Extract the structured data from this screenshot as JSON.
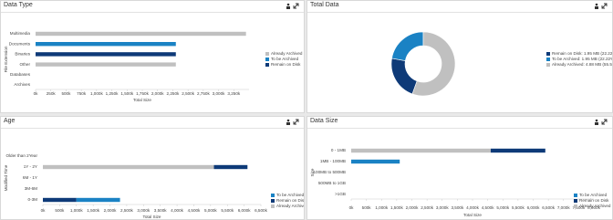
{
  "chart_data": [
    {
      "type": "hbar",
      "title": "Data Type",
      "xlabel": "Total Size",
      "ylabel": "File Extension",
      "categories": [
        "Multimedia",
        "Documents",
        "Binaries",
        "Other",
        "Databases",
        "Archives"
      ],
      "series": [
        {
          "name": "Already Archived",
          "color": "#c0c0c0",
          "values": [
            3450,
            0,
            0,
            2300,
            0,
            0
          ]
        },
        {
          "name": "To be Archived",
          "color": "#1a82c4",
          "values": [
            0,
            2300,
            0,
            0,
            0,
            0
          ]
        },
        {
          "name": "Remain on Disk",
          "color": "#0e3a78",
          "values": [
            0,
            0,
            2300,
            0,
            0,
            0
          ]
        }
      ],
      "xlim": [
        0,
        3500
      ],
      "xticks": [
        {
          "value": 0,
          "label": "0k"
        },
        {
          "value": 250,
          "label": "250k"
        },
        {
          "value": 500,
          "label": "500k"
        },
        {
          "value": 750,
          "label": "750k"
        },
        {
          "value": 1000,
          "label": "1,000k"
        },
        {
          "value": 1250,
          "label": "1,250k"
        },
        {
          "value": 1500,
          "label": "1,500k"
        },
        {
          "value": 1750,
          "label": "1,750k"
        },
        {
          "value": 2000,
          "label": "2,000k"
        },
        {
          "value": 2250,
          "label": "2,250k"
        },
        {
          "value": 2500,
          "label": "2,500k"
        },
        {
          "value": 2750,
          "label": "2,750k"
        },
        {
          "value": 3000,
          "label": "3,000k"
        },
        {
          "value": 3250,
          "label": "3,250k"
        }
      ],
      "legend": "right"
    },
    {
      "type": "pie",
      "title": "Total Data",
      "categories": [
        "Remain on Disk: 1.95 MB (22.22%)",
        "To be Archived: 1.95 MB (22.22%)",
        "Already Archived: 4.88 MB (55.56%)"
      ],
      "values": [
        22.22,
        22.22,
        55.56
      ],
      "colors": [
        "#0e3a78",
        "#1a82c4",
        "#c0c0c0"
      ],
      "legend": "right"
    },
    {
      "type": "hbar",
      "title": "Age",
      "xlabel": "Total Size",
      "ylabel": "Modified Time",
      "categories": [
        "Older than 2Year",
        "1Y - 2Y",
        "6M - 1Y",
        "3M-6M",
        "0-3M"
      ],
      "series": [
        {
          "name": "To be Archived",
          "color": "#1a82c4",
          "values": [
            0,
            0,
            0,
            0,
            1300
          ]
        },
        {
          "name": "Remain on Disk",
          "color": "#0e3a78",
          "values": [
            0,
            1000,
            0,
            0,
            1000
          ]
        },
        {
          "name": "Already Archived",
          "color": "#c0c0c0",
          "values": [
            0,
            5100,
            0,
            0,
            0
          ]
        }
      ],
      "xlim": [
        0,
        6500
      ],
      "xticks": [
        {
          "value": 0,
          "label": "0k"
        },
        {
          "value": 500,
          "label": "500k"
        },
        {
          "value": 1000,
          "label": "1,000k"
        },
        {
          "value": 1500,
          "label": "1,500k"
        },
        {
          "value": 2000,
          "label": "2,000k"
        },
        {
          "value": 2500,
          "label": "2,500k"
        },
        {
          "value": 3000,
          "label": "3,000k"
        },
        {
          "value": 3500,
          "label": "3,500k"
        },
        {
          "value": 4000,
          "label": "4,000k"
        },
        {
          "value": 4500,
          "label": "4,500k"
        },
        {
          "value": 5000,
          "label": "5,000k"
        },
        {
          "value": 5500,
          "label": "5,500k"
        },
        {
          "value": 6000,
          "label": "6,000k"
        },
        {
          "value": 6500,
          "label": "6,500k"
        }
      ],
      "legend": "right"
    },
    {
      "type": "hbar",
      "title": "Data Size",
      "xlabel": "Total Size",
      "ylabel": "Size",
      "categories": [
        "0 - 1MB",
        "1MB - 100MB",
        "100MB to 500MB",
        "500MB to 1GB",
        ">1GB"
      ],
      "series": [
        {
          "name": "To be Archived",
          "color": "#1a82c4",
          "values": [
            0,
            1600,
            0,
            0,
            0
          ]
        },
        {
          "name": "Remain on Disk",
          "color": "#0e3a78",
          "values": [
            1800,
            0,
            0,
            0,
            0
          ]
        },
        {
          "name": "Already Archived",
          "color": "#c0c0c0",
          "values": [
            4600,
            0,
            0,
            0,
            0
          ]
        }
      ],
      "xlim": [
        0,
        8000
      ],
      "xticks": [
        {
          "value": 0,
          "label": "0k"
        },
        {
          "value": 500,
          "label": "500k"
        },
        {
          "value": 1000,
          "label": "1,000k"
        },
        {
          "value": 1500,
          "label": "1,500k"
        },
        {
          "value": 2000,
          "label": "2,000k"
        },
        {
          "value": 2500,
          "label": "2,500k"
        },
        {
          "value": 3000,
          "label": "3,000k"
        },
        {
          "value": 3500,
          "label": "3,500k"
        },
        {
          "value": 4000,
          "label": "4,000k"
        },
        {
          "value": 4500,
          "label": "4,500k"
        },
        {
          "value": 5000,
          "label": "5,000k"
        },
        {
          "value": 5500,
          "label": "5,500k"
        },
        {
          "value": 6000,
          "label": "6,000k"
        },
        {
          "value": 6500,
          "label": "6,500k"
        },
        {
          "value": 7000,
          "label": "7,000k"
        },
        {
          "value": 7500,
          "label": "7,500k"
        },
        {
          "value": 8000,
          "label": "8,000k"
        }
      ],
      "legend": "right"
    }
  ]
}
